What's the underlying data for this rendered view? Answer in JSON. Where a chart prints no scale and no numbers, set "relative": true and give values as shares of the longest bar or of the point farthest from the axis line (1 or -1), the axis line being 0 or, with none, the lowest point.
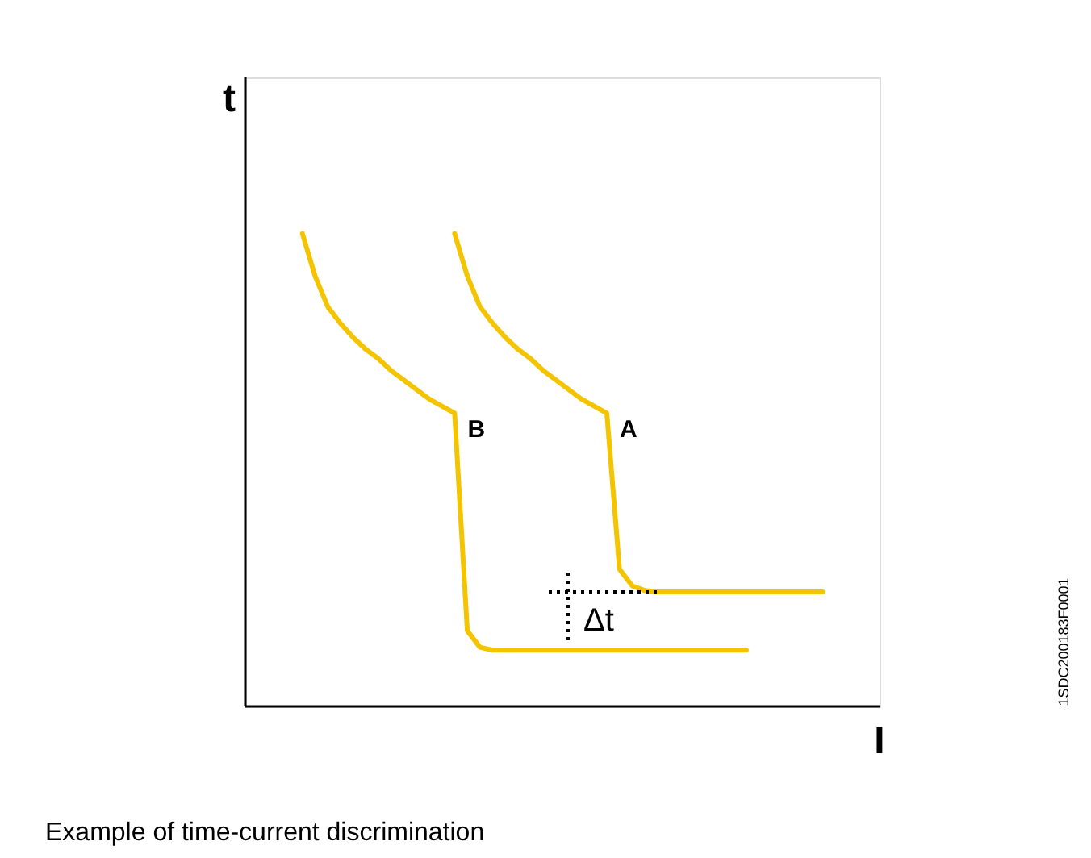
{
  "chart_data": {
    "type": "line",
    "relative": true,
    "xlabel": "I",
    "ylabel": "t",
    "grid": false,
    "marker": "none",
    "line_style": "solid",
    "categories": [
      null,
      null,
      null,
      null,
      null,
      null,
      null,
      null,
      null,
      null,
      null,
      null,
      null,
      null,
      null,
      null,
      null,
      null,
      null,
      null,
      null,
      null,
      null,
      null,
      null,
      null,
      null,
      null,
      null,
      null,
      null,
      null,
      null,
      null,
      null,
      null,
      null,
      null,
      null,
      null,
      null,
      null,
      null,
      null,
      null,
      null,
      null,
      null,
      null,
      null
    ],
    "series": [
      {
        "name": "B",
        "color": "#f5c400",
        "values": [
          null,
          null,
          null,
          null,
          1.0,
          0.91,
          0.845,
          0.81,
          0.78,
          0.755,
          0.735,
          0.71,
          0.69,
          0.67,
          0.65,
          0.635,
          0.62,
          0.16,
          0.125,
          0.119,
          0.119,
          0.119,
          0.119,
          0.119,
          0.119,
          0.119,
          0.119,
          0.119,
          0.119,
          0.119,
          0.119,
          0.119,
          0.119,
          0.119,
          0.119,
          0.119,
          0.119,
          0.119,
          0.119,
          0.119,
          null,
          null,
          null,
          null,
          null,
          null,
          null,
          null,
          null,
          null
        ]
      },
      {
        "name": "A",
        "color": "#f5c400",
        "values": [
          null,
          null,
          null,
          null,
          null,
          null,
          null,
          null,
          null,
          null,
          null,
          null,
          null,
          null,
          null,
          null,
          1.0,
          0.91,
          0.845,
          0.81,
          0.78,
          0.755,
          0.735,
          0.71,
          0.69,
          0.67,
          0.65,
          0.635,
          0.62,
          0.29,
          0.255,
          0.245,
          0.242,
          0.242,
          0.242,
          0.242,
          0.242,
          0.242,
          0.242,
          0.242,
          0.242,
          0.242,
          0.242,
          0.242,
          0.242,
          0.242,
          null,
          null,
          null,
          null
        ]
      }
    ],
    "annotations": [
      "Δt",
      "Example of time-current discrimination",
      "1SDC200183F0001"
    ]
  }
}
